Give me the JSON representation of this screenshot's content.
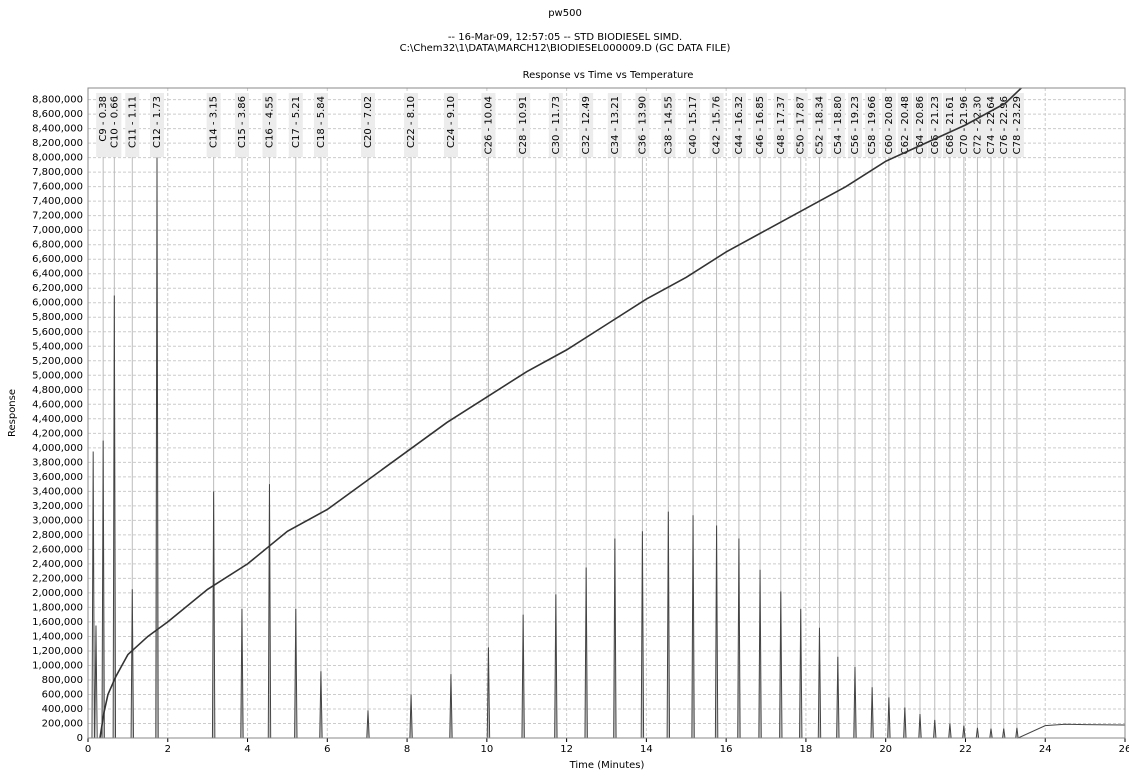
{
  "chart_data": {
    "type": "line",
    "title": "pw500",
    "subtitle": [
      "-- 16-Mar-09, 12:57:05 -- STD BIODIESEL SIMD.",
      "C:\\Chem32\\1\\DATA\\MARCH12\\BIODIESEL000009.D (GC DATA FILE)"
    ],
    "chart_title": "Response vs Time vs Temperature",
    "x_label": "Time (Minutes)",
    "y_label": "Response",
    "xlim": [
      0,
      26
    ],
    "xticks": [
      0,
      2,
      4,
      6,
      8,
      10,
      12,
      14,
      16,
      18,
      20,
      22,
      24,
      26
    ],
    "ylim": [
      0,
      8960000
    ],
    "yticks": [
      {
        "value": 0,
        "label": "0"
      },
      {
        "value": 200000,
        "label": "200,000"
      },
      {
        "value": 400000,
        "label": "400,000"
      },
      {
        "value": 600000,
        "label": "600,000"
      },
      {
        "value": 800000,
        "label": "800,000"
      },
      {
        "value": 1000000,
        "label": "1,000,000"
      },
      {
        "value": 1200000,
        "label": "1,200,000"
      },
      {
        "value": 1400000,
        "label": "1,400,000"
      },
      {
        "value": 1600000,
        "label": "1,600,000"
      },
      {
        "value": 1800000,
        "label": "1,800,000"
      },
      {
        "value": 2000000,
        "label": "2,000,000"
      },
      {
        "value": 2200000,
        "label": "2,200,000"
      },
      {
        "value": 2400000,
        "label": "2,400,000"
      },
      {
        "value": 2600000,
        "label": "2,600,000"
      },
      {
        "value": 2800000,
        "label": "2,800,000"
      },
      {
        "value": 3000000,
        "label": "3,000,000"
      },
      {
        "value": 3200000,
        "label": "3,200,000"
      },
      {
        "value": 3400000,
        "label": "3,400,000"
      },
      {
        "value": 3600000,
        "label": "3,600,000"
      },
      {
        "value": 3800000,
        "label": "3,800,000"
      },
      {
        "value": 4000000,
        "label": "4,000,000"
      },
      {
        "value": 4200000,
        "label": "4,200,000"
      },
      {
        "value": 4400000,
        "label": "4,400,000"
      },
      {
        "value": 4600000,
        "label": "4,600,000"
      },
      {
        "value": 4800000,
        "label": "4,800,000"
      },
      {
        "value": 5000000,
        "label": "5,000,000"
      },
      {
        "value": 5200000,
        "label": "5,200,000"
      },
      {
        "value": 5400000,
        "label": "5,400,000"
      },
      {
        "value": 5600000,
        "label": "5,600,000"
      },
      {
        "value": 5800000,
        "label": "5,800,000"
      },
      {
        "value": 6000000,
        "label": "6,000,000"
      },
      {
        "value": 6200000,
        "label": "6,200,000"
      },
      {
        "value": 6400000,
        "label": "6,400,000"
      },
      {
        "value": 6600000,
        "label": "6,600,000"
      },
      {
        "value": 6800000,
        "label": "6,800,000"
      },
      {
        "value": 7000000,
        "label": "7,000,000"
      },
      {
        "value": 7200000,
        "label": "7,200,000"
      },
      {
        "value": 7400000,
        "label": "7,400,000"
      },
      {
        "value": 7600000,
        "label": "7,600,000"
      },
      {
        "value": 7800000,
        "label": "7,800,000"
      },
      {
        "value": 8000000,
        "label": "8,000,000"
      },
      {
        "value": 8200000,
        "label": "8,200,000"
      },
      {
        "value": 8400000,
        "label": "8,400,000"
      },
      {
        "value": 8600000,
        "label": "8,600,000"
      },
      {
        "value": 8800000,
        "label": "8,800,000"
      }
    ],
    "grid": true,
    "peak_labels": [
      {
        "label": "C9 - 0.38",
        "x": 0.38
      },
      {
        "label": "C10 - 0.66",
        "x": 0.66
      },
      {
        "label": "C11 - 1.11",
        "x": 1.11
      },
      {
        "label": "C12 - 1.73",
        "x": 1.73
      },
      {
        "label": "C14 - 3.15",
        "x": 3.15
      },
      {
        "label": "C15 - 3.86",
        "x": 3.86
      },
      {
        "label": "C16 - 4.55",
        "x": 4.55
      },
      {
        "label": "C17 - 5.21",
        "x": 5.21
      },
      {
        "label": "C18 - 5.84",
        "x": 5.84
      },
      {
        "label": "C20 - 7.02",
        "x": 7.02
      },
      {
        "label": "C22 - 8.10",
        "x": 8.1
      },
      {
        "label": "C24 - 9.10",
        "x": 9.1
      },
      {
        "label": "C26 - 10.04",
        "x": 10.04
      },
      {
        "label": "C28 - 10.91",
        "x": 10.91
      },
      {
        "label": "C30 - 11.73",
        "x": 11.73
      },
      {
        "label": "C32 - 12.49",
        "x": 12.49
      },
      {
        "label": "C34 - 13.21",
        "x": 13.21
      },
      {
        "label": "C36 - 13.90",
        "x": 13.9
      },
      {
        "label": "C38 - 14.55",
        "x": 14.55
      },
      {
        "label": "C40 - 15.17",
        "x": 15.17
      },
      {
        "label": "C42 - 15.76",
        "x": 15.76
      },
      {
        "label": "C44 - 16.32",
        "x": 16.32
      },
      {
        "label": "C46 - 16.85",
        "x": 16.85
      },
      {
        "label": "C48 - 17.37",
        "x": 17.37
      },
      {
        "label": "C50 - 17.87",
        "x": 17.87
      },
      {
        "label": "C52 - 18.34",
        "x": 18.34
      },
      {
        "label": "C54 - 18.80",
        "x": 18.8
      },
      {
        "label": "C56 - 19.23",
        "x": 19.23
      },
      {
        "label": "C58 - 19.66",
        "x": 19.66
      },
      {
        "label": "C60 - 20.08",
        "x": 20.08
      },
      {
        "label": "C62 - 20.48",
        "x": 20.48
      },
      {
        "label": "C64 - 20.86",
        "x": 20.86
      },
      {
        "label": "C66 - 21.23",
        "x": 21.23
      },
      {
        "label": "C68 - 21.61",
        "x": 21.61
      },
      {
        "label": "C70 - 21.96",
        "x": 21.96
      },
      {
        "label": "C72 - 22.30",
        "x": 22.3
      },
      {
        "label": "C74 - 22.64",
        "x": 22.64
      },
      {
        "label": "C76 - 22.96",
        "x": 22.96
      },
      {
        "label": "C78 - 23.29",
        "x": 23.29
      }
    ],
    "series": [
      {
        "color": "#444444",
        "x": [
          0,
          0.1,
          0.13,
          0.16,
          0.17,
          0.2,
          0.23,
          0.35,
          0.38,
          0.41,
          0.63,
          0.66,
          0.69,
          1.08,
          1.11,
          1.14,
          1.7,
          1.73,
          1.76,
          3.12,
          3.15,
          3.18,
          3.83,
          3.86,
          3.89,
          4.52,
          4.55,
          4.58,
          5.18,
          5.21,
          5.24,
          5.81,
          5.84,
          5.87,
          6.99,
          7.02,
          7.05,
          8.07,
          8.1,
          8.13,
          9.07,
          9.1,
          9.13,
          10.01,
          10.04,
          10.07,
          10.88,
          10.91,
          10.94,
          11.7,
          11.73,
          11.76,
          12.46,
          12.49,
          12.52,
          13.18,
          13.21,
          13.24,
          13.87,
          13.9,
          13.93,
          14.52,
          14.55,
          14.58,
          15.14,
          15.17,
          15.2,
          15.73,
          15.76,
          15.79,
          16.29,
          16.32,
          16.35,
          16.82,
          16.85,
          16.88,
          17.34,
          17.37,
          17.4,
          17.84,
          17.87,
          17.9,
          18.31,
          18.34,
          18.37,
          18.77,
          18.8,
          18.83,
          19.2,
          19.23,
          19.26,
          19.63,
          19.66,
          19.69,
          20.05,
          20.08,
          20.11,
          20.45,
          20.48,
          20.51,
          20.83,
          20.86,
          20.89,
          21.2,
          21.23,
          21.26,
          21.58,
          21.61,
          21.64,
          21.93,
          21.96,
          21.99,
          22.27,
          22.3,
          22.33,
          22.61,
          22.64,
          22.67,
          22.93,
          22.96,
          22.99,
          23.26,
          23.29,
          23.32,
          24,
          24.5,
          25,
          26
        ],
        "values": [
          0,
          0,
          3950000,
          0,
          0,
          1550000,
          0,
          0,
          4100000,
          0,
          0,
          6100000,
          0,
          0,
          2050000,
          0,
          0,
          8000000,
          0,
          0,
          3400000,
          0,
          0,
          1780000,
          0,
          0,
          3500000,
          0,
          0,
          1780000,
          0,
          0,
          920000,
          0,
          0,
          380000,
          0,
          0,
          600000,
          0,
          0,
          880000,
          0,
          0,
          1250000,
          0,
          0,
          1700000,
          0,
          0,
          1980000,
          0,
          0,
          2350000,
          0,
          0,
          2750000,
          0,
          0,
          2850000,
          0,
          0,
          3120000,
          0,
          0,
          3070000,
          0,
          0,
          2930000,
          0,
          0,
          2750000,
          0,
          0,
          2320000,
          0,
          0,
          2020000,
          0,
          0,
          1780000,
          0,
          0,
          1520000,
          0,
          0,
          1120000,
          0,
          0,
          980000,
          0,
          0,
          700000,
          0,
          0,
          560000,
          0,
          0,
          420000,
          0,
          0,
          330000,
          0,
          0,
          250000,
          0,
          0,
          200000,
          0,
          0,
          170000,
          0,
          0,
          140000,
          0,
          0,
          130000,
          0,
          0,
          130000,
          0,
          0,
          140000,
          0,
          170000,
          190000,
          185000,
          180000
        ]
      },
      {
        "color": "#333333",
        "x": [
          0.3,
          0.4,
          0.5,
          0.7,
          1,
          1.5,
          2,
          3,
          4,
          5,
          6,
          7,
          8,
          9,
          10,
          11,
          12,
          13,
          14,
          15,
          16,
          17,
          18,
          19,
          20,
          21,
          22,
          23,
          23.4
        ],
        "values": [
          0,
          350000,
          600000,
          850000,
          1150000,
          1400000,
          1600000,
          2050000,
          2400000,
          2850000,
          3150000,
          3550000,
          3950000,
          4350000,
          4700000,
          5050000,
          5350000,
          5700000,
          6050000,
          6350000,
          6700000,
          7000000,
          7300000,
          7600000,
          7950000,
          8200000,
          8450000,
          8750000,
          8960000
        ]
      }
    ]
  }
}
